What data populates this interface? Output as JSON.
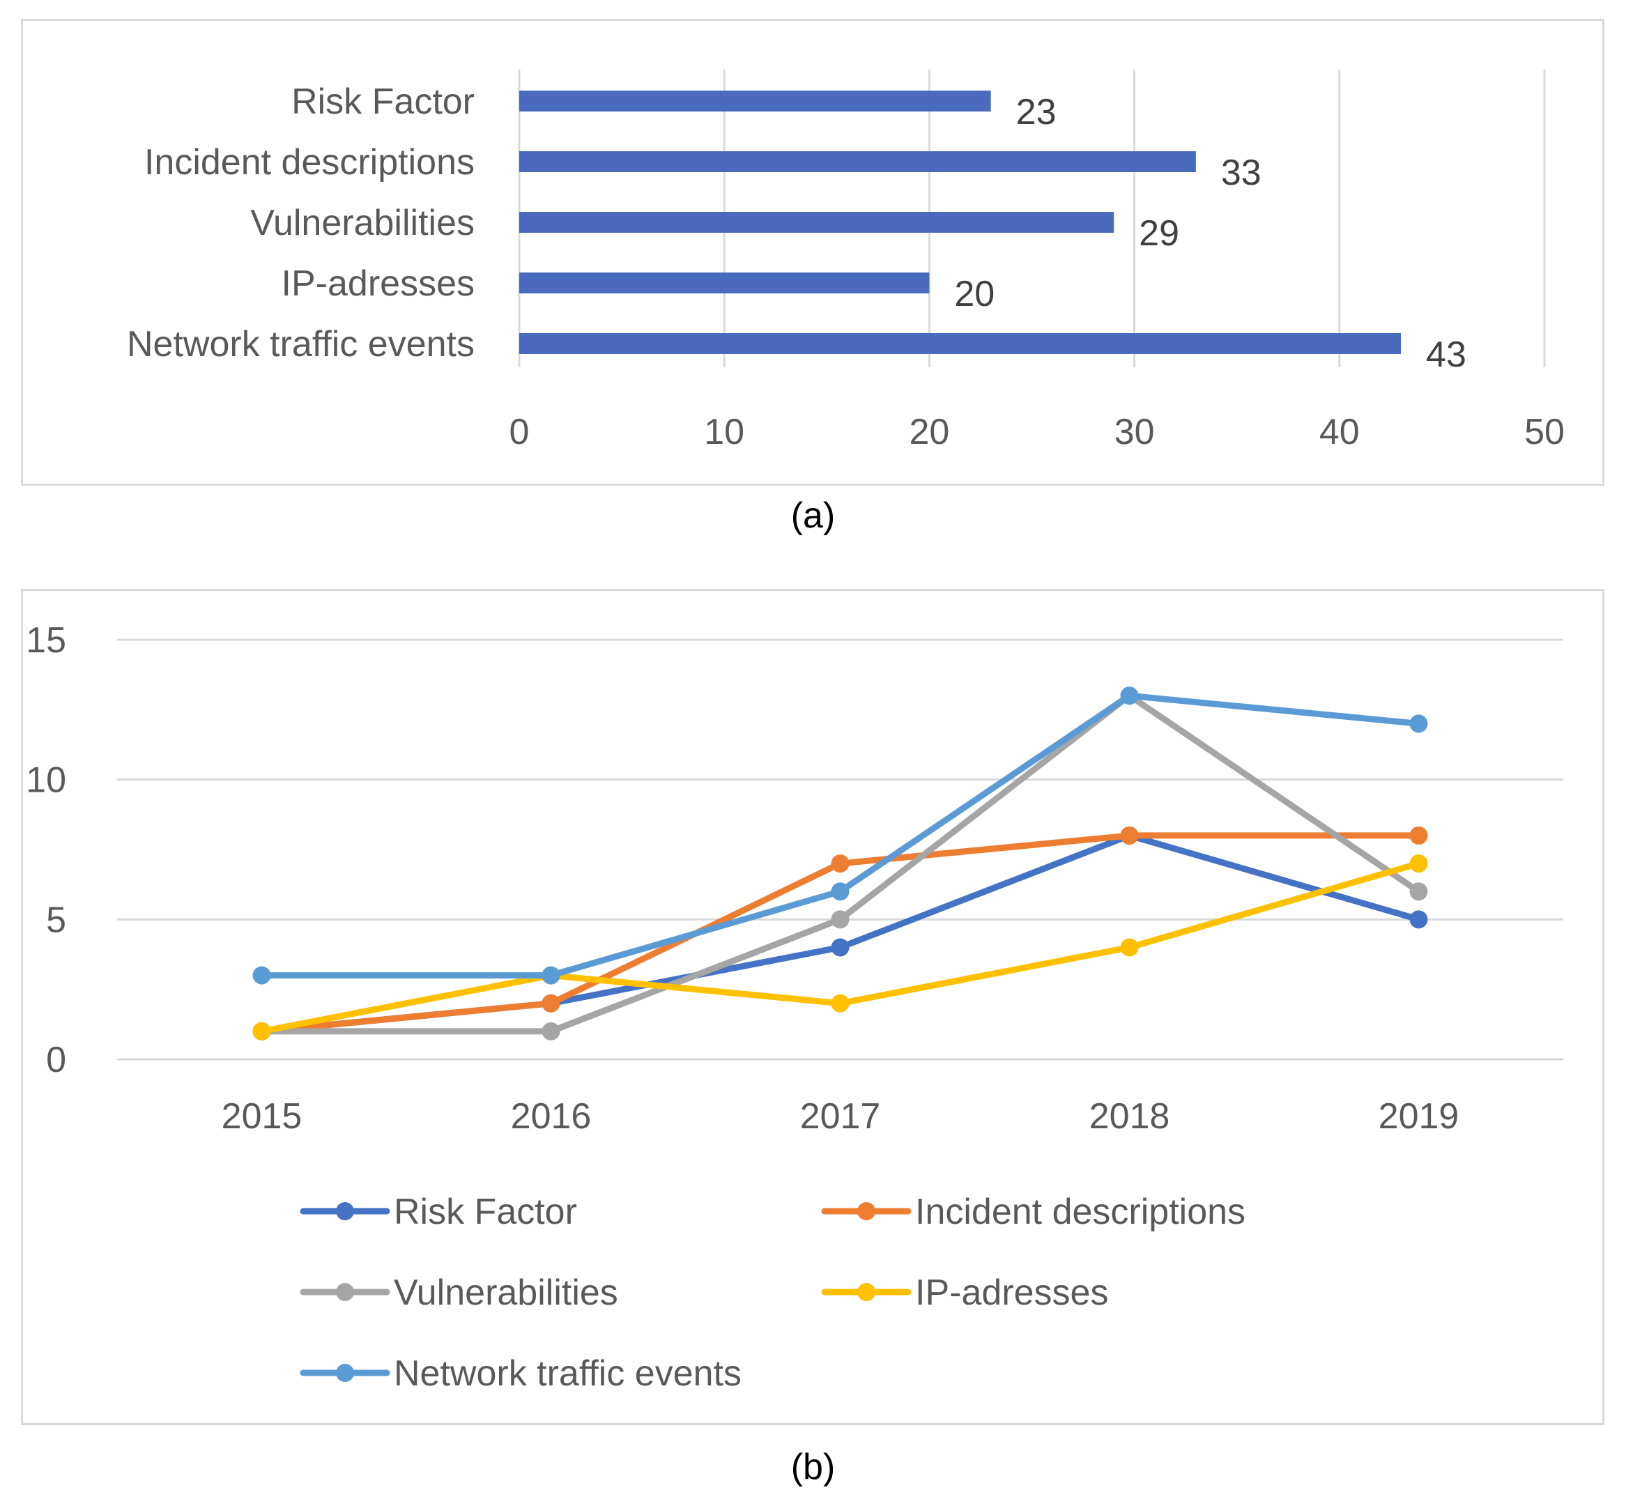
{
  "captions": {
    "a": "(a)",
    "b": "(b)"
  },
  "chart_data": [
    {
      "type": "bar",
      "orientation": "horizontal",
      "categories": [
        "Risk Factor",
        "Incident descriptions",
        "Vulnerabilities",
        "IP-adresses",
        "Network traffic events"
      ],
      "values": [
        23,
        33,
        29,
        20,
        43
      ],
      "xlim": [
        0,
        50
      ],
      "xticks": [
        0,
        10,
        20,
        30,
        40,
        50
      ],
      "grid": true,
      "bar_color": "#4a6bbd",
      "data_labels": true
    },
    {
      "type": "line",
      "x": [
        "2015",
        "2016",
        "2017",
        "2018",
        "2019"
      ],
      "ylim": [
        0,
        15
      ],
      "yticks": [
        0,
        5,
        10,
        15
      ],
      "grid": true,
      "legend_position": "bottom",
      "series": [
        {
          "name": "Risk Factor",
          "color": "#4472c4",
          "values": [
            1,
            2,
            4,
            8,
            5
          ]
        },
        {
          "name": "Incident descriptions",
          "color": "#ed7d31",
          "values": [
            1,
            2,
            7,
            8,
            8
          ]
        },
        {
          "name": "Vulnerabilities",
          "color": "#a5a5a5",
          "values": [
            1,
            1,
            5,
            13,
            6
          ]
        },
        {
          "name": "IP-adresses",
          "color": "#ffc000",
          "values": [
            1,
            3,
            2,
            4,
            7
          ]
        },
        {
          "name": "Network traffic events",
          "color": "#5b9bd5",
          "values": [
            3,
            3,
            6,
            13,
            12
          ]
        }
      ]
    }
  ]
}
